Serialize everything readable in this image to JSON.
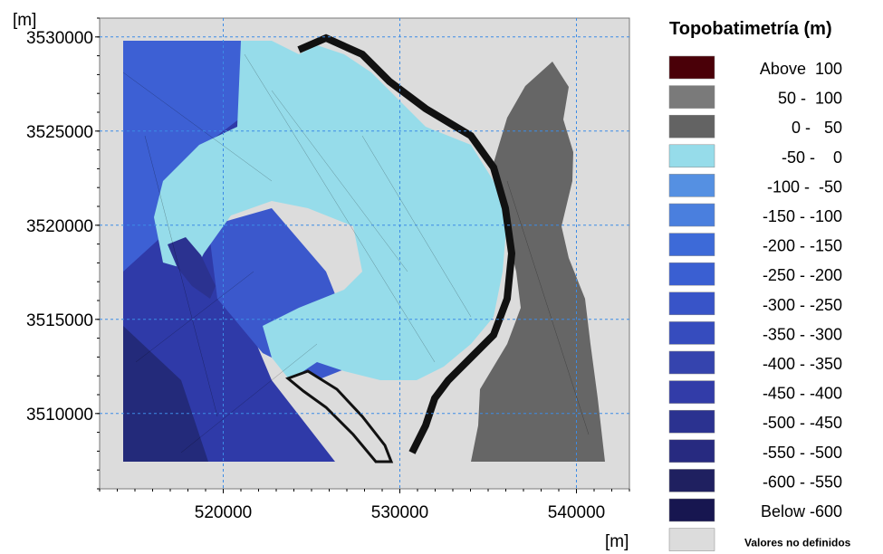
{
  "chart_data": {
    "type": "heatmap",
    "title": "Topobatimetría (m)",
    "xlabel": "[m]",
    "ylabel": "[m]",
    "xlim": [
      513000,
      543000
    ],
    "ylim": [
      3506000,
      3531000
    ],
    "x_ticks": [
      {
        "value": 520000,
        "label": "520000"
      },
      {
        "value": 530000,
        "label": "530000"
      },
      {
        "value": 540000,
        "label": "540000"
      }
    ],
    "y_ticks": [
      {
        "value": 3530000,
        "label": "3530000"
      },
      {
        "value": 3525000,
        "label": "3525000"
      },
      {
        "value": 3520000,
        "label": "3520000"
      },
      {
        "value": 3515000,
        "label": "3515000"
      },
      {
        "value": 3510000,
        "label": "3510000"
      }
    ],
    "grid": true,
    "legend_position": "right",
    "legend": [
      {
        "label": "Above  100",
        "color": "#4a0008"
      },
      {
        "label": "50 -  100",
        "color": "#7a7a7a"
      },
      {
        "label": "0 -   50",
        "color": "#636363"
      },
      {
        "label": "-50 -    0",
        "color": "#96dcea"
      },
      {
        "label": "-100 -  -50",
        "color": "#5590e2"
      },
      {
        "label": "-150 - -100",
        "color": "#4a7fde"
      },
      {
        "label": "-200 - -150",
        "color": "#3d6ad8"
      },
      {
        "label": "-250 - -200",
        "color": "#3a5fd2"
      },
      {
        "label": "-300 - -250",
        "color": "#3854c8"
      },
      {
        "label": "-350 - -300",
        "color": "#364cbe"
      },
      {
        "label": "-400 - -350",
        "color": "#3544ae"
      },
      {
        "label": "-450 - -400",
        "color": "#323ca8"
      },
      {
        "label": "-500 - -450",
        "color": "#2b3290"
      },
      {
        "label": "-550 - -500",
        "color": "#272a80"
      },
      {
        "label": "-600 - -550",
        "color": "#1f2060"
      },
      {
        "label": "Below -600",
        "color": "#171650"
      },
      {
        "label": "Valores no definidos",
        "color": "#dcdcdc"
      }
    ],
    "background_color": "#dcdcdc",
    "grid_color": "#3c8ce6"
  }
}
